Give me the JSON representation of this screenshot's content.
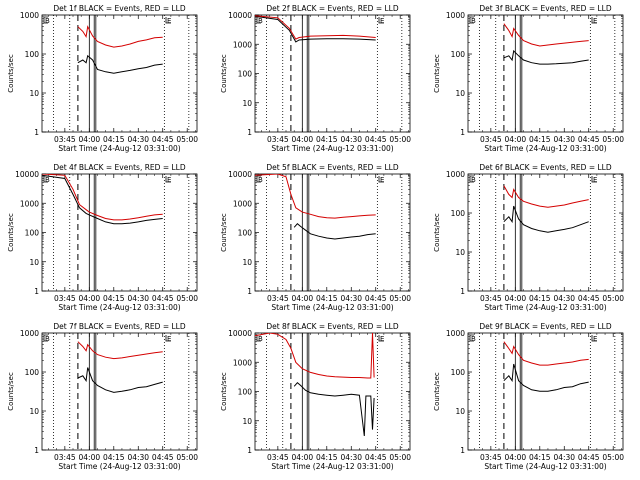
{
  "figure": {
    "xtick_labels": [
      "03:45",
      "04:00",
      "04:15",
      "04:30",
      "04:45",
      "05:00"
    ],
    "ylabel": "Counts/sec",
    "colors": {
      "events": "#000000",
      "lld": "#d40000"
    },
    "marker_labels": {
      "start": "B",
      "end": "E"
    }
  },
  "chart_data": [
    {
      "type": "line",
      "title": "Det 1f BLACK = Events, RED = LLD",
      "xlabel": "Start Time (24-Aug-12 03:31:00)",
      "ylabel": "Counts/sec",
      "xlim": [
        "03:31",
        "05:06"
      ],
      "ylim": [
        1,
        1000
      ],
      "yscale": "log",
      "ytick_labels": [
        "1",
        "10",
        "100",
        "1000"
      ],
      "series": [
        {
          "name": "Events",
          "x": [
            "03:53",
            "03:56",
            "03:58",
            "03:59",
            "04:02",
            "04:05",
            "04:10",
            "04:15",
            "04:20",
            "04:25",
            "04:30",
            "04:35",
            "04:40",
            "04:45"
          ],
          "y": [
            60,
            70,
            60,
            90,
            70,
            40,
            35,
            32,
            35,
            38,
            42,
            45,
            52,
            55
          ]
        },
        {
          "name": "LLD",
          "x": [
            "03:53",
            "03:56",
            "03:58",
            "03:59",
            "04:02",
            "04:05",
            "04:10",
            "04:15",
            "04:20",
            "04:25",
            "04:30",
            "04:35",
            "04:40",
            "04:45"
          ],
          "y": [
            500,
            380,
            280,
            500,
            290,
            210,
            170,
            150,
            160,
            180,
            210,
            230,
            260,
            270
          ]
        }
      ]
    },
    {
      "type": "line",
      "title": "Det 2f BLACK = Events, RED = LLD",
      "xlabel": "Start Time (24-Aug-12 03:31:00)",
      "ylabel": "Counts/sec",
      "xlim": [
        "03:31",
        "05:06"
      ],
      "ylim": [
        1,
        10000
      ],
      "yscale": "log",
      "ytick_labels": [
        "1",
        "10",
        "100",
        "1000",
        "10000"
      ],
      "series": [
        {
          "name": "Events",
          "x": [
            "03:31",
            "03:45",
            "03:52",
            "03:56",
            "03:58",
            "04:05",
            "04:15",
            "04:25",
            "04:35",
            "04:45"
          ],
          "y": [
            9000,
            7000,
            3000,
            1200,
            1400,
            1500,
            1550,
            1550,
            1500,
            1400
          ]
        },
        {
          "name": "LLD",
          "x": [
            "03:31",
            "03:45",
            "03:52",
            "03:56",
            "03:58",
            "04:05",
            "04:15",
            "04:25",
            "04:35",
            "04:45"
          ],
          "y": [
            9500,
            8000,
            3500,
            1500,
            1700,
            1900,
            1950,
            2000,
            1900,
            1700
          ]
        }
      ]
    },
    {
      "type": "line",
      "title": "Det 3f BLACK = Events, RED = LLD",
      "xlabel": "Start Time (24-Aug-12 03:31:00)",
      "ylabel": "Counts/sec",
      "xlim": [
        "03:31",
        "05:06"
      ],
      "ylim": [
        1,
        1000
      ],
      "yscale": "log",
      "ytick_labels": [
        "1",
        "10",
        "100",
        "1000"
      ],
      "series": [
        {
          "name": "Events",
          "x": [
            "03:53",
            "03:56",
            "03:58",
            "03:59",
            "04:02",
            "04:05",
            "04:10",
            "04:15",
            "04:20",
            "04:25",
            "04:30",
            "04:35",
            "04:40",
            "04:45"
          ],
          "y": [
            80,
            90,
            70,
            120,
            90,
            70,
            60,
            55,
            55,
            56,
            58,
            60,
            65,
            70
          ]
        },
        {
          "name": "LLD",
          "x": [
            "03:53",
            "03:56",
            "03:58",
            "03:59",
            "04:02",
            "04:05",
            "04:10",
            "04:15",
            "04:20",
            "04:25",
            "04:30",
            "04:35",
            "04:40",
            "04:45"
          ],
          "y": [
            600,
            400,
            280,
            450,
            300,
            220,
            180,
            160,
            170,
            180,
            190,
            200,
            210,
            220
          ]
        }
      ]
    },
    {
      "type": "line",
      "title": "Det 4f BLACK = Events, RED = LLD",
      "xlabel": "Start Time (24-Aug-12 03:31:00)",
      "ylabel": "Counts/sec",
      "xlim": [
        "03:31",
        "05:06"
      ],
      "ylim": [
        1,
        10000
      ],
      "yscale": "log",
      "ytick_labels": [
        "1",
        "10",
        "100",
        "1000",
        "10000"
      ],
      "series": [
        {
          "name": "Events",
          "x": [
            "03:31",
            "03:45",
            "03:50",
            "03:54",
            "03:58",
            "04:00",
            "04:05",
            "04:10",
            "04:15",
            "04:20",
            "04:25",
            "04:30",
            "04:35",
            "04:40",
            "04:45"
          ],
          "y": [
            9000,
            7000,
            2000,
            700,
            450,
            400,
            300,
            230,
            200,
            200,
            210,
            230,
            260,
            280,
            300
          ]
        },
        {
          "name": "LLD",
          "x": [
            "03:31",
            "03:45",
            "03:50",
            "03:54",
            "03:58",
            "04:00",
            "04:05",
            "04:10",
            "04:15",
            "04:20",
            "04:25",
            "04:30",
            "04:35",
            "04:40",
            "04:45"
          ],
          "y": [
            10000,
            9000,
            3000,
            900,
            600,
            500,
            380,
            300,
            270,
            270,
            290,
            320,
            360,
            400,
            420
          ]
        }
      ]
    },
    {
      "type": "line",
      "title": "Det 5f BLACK = Events, RED = LLD",
      "xlabel": "Start Time (24-Aug-12 03:31:00)",
      "ylabel": "Counts/sec",
      "xlim": [
        "03:31",
        "05:06"
      ],
      "ylim": [
        1,
        10000
      ],
      "yscale": "log",
      "ytick_labels": [
        "1",
        "10",
        "100",
        "1000",
        "10000"
      ],
      "series": [
        {
          "name": "Events",
          "x": [
            "03:55",
            "03:57",
            "03:59",
            "04:02",
            "04:05",
            "04:10",
            "04:15",
            "04:20",
            "04:25",
            "04:30",
            "04:35",
            "04:40",
            "04:45"
          ],
          "y": [
            150,
            200,
            160,
            120,
            90,
            75,
            65,
            60,
            65,
            70,
            75,
            85,
            90
          ]
        },
        {
          "name": "LLD",
          "x": [
            "03:31",
            "03:45",
            "03:50",
            "03:53",
            "03:56",
            "04:00",
            "04:05",
            "04:10",
            "04:15",
            "04:20",
            "04:25",
            "04:30",
            "04:35",
            "04:40",
            "04:45"
          ],
          "y": [
            9000,
            10000,
            8000,
            2000,
            700,
            500,
            420,
            350,
            320,
            310,
            330,
            350,
            370,
            390,
            400
          ]
        }
      ]
    },
    {
      "type": "line",
      "title": "Det 6f BLACK = Events, RED = LLD",
      "xlabel": "Start Time (24-Aug-12 03:31:00)",
      "ylabel": "Counts/sec",
      "xlim": [
        "03:31",
        "05:06"
      ],
      "ylim": [
        1,
        1000
      ],
      "yscale": "log",
      "ytick_labels": [
        "1",
        "10",
        "100",
        "1000"
      ],
      "series": [
        {
          "name": "Events",
          "x": [
            "03:53",
            "03:56",
            "03:58",
            "03:59",
            "04:02",
            "04:05",
            "04:10",
            "04:15",
            "04:20",
            "04:25",
            "04:30",
            "04:35",
            "04:40",
            "04:45"
          ],
          "y": [
            60,
            80,
            60,
            150,
            70,
            50,
            40,
            35,
            32,
            35,
            38,
            42,
            50,
            60
          ]
        },
        {
          "name": "LLD",
          "x": [
            "03:53",
            "03:56",
            "03:58",
            "03:59",
            "04:02",
            "04:05",
            "04:10",
            "04:15",
            "04:20",
            "04:25",
            "04:30",
            "04:35",
            "04:40",
            "04:45"
          ],
          "y": [
            500,
            300,
            250,
            400,
            250,
            200,
            170,
            150,
            140,
            150,
            160,
            180,
            200,
            220
          ]
        }
      ]
    },
    {
      "type": "line",
      "title": "Det 7f BLACK = Events, RED = LLD",
      "xlabel": "Start Time (24-Aug-12 03:31:00)",
      "ylabel": "Counts/sec",
      "xlim": [
        "03:31",
        "05:06"
      ],
      "ylim": [
        1,
        1000
      ],
      "yscale": "log",
      "ytick_labels": [
        "1",
        "10",
        "100",
        "1000"
      ],
      "series": [
        {
          "name": "Events",
          "x": [
            "03:53",
            "03:56",
            "03:58",
            "03:59",
            "04:02",
            "04:05",
            "04:10",
            "04:15",
            "04:20",
            "04:25",
            "04:30",
            "04:35",
            "04:40",
            "04:45"
          ],
          "y": [
            70,
            80,
            60,
            130,
            60,
            45,
            35,
            30,
            32,
            35,
            40,
            42,
            48,
            55
          ]
        },
        {
          "name": "LLD",
          "x": [
            "03:53",
            "03:56",
            "03:58",
            "03:59",
            "04:02",
            "04:05",
            "04:10",
            "04:15",
            "04:20",
            "04:25",
            "04:30",
            "04:35",
            "04:40",
            "04:45"
          ],
          "y": [
            600,
            450,
            350,
            500,
            350,
            280,
            240,
            220,
            230,
            250,
            270,
            290,
            310,
            330
          ]
        }
      ]
    },
    {
      "type": "line",
      "title": "Det 8f BLACK = Events, RED = LLD",
      "xlabel": "Start Time (24-Aug-12 03:31:00)",
      "ylabel": "Counts/sec",
      "xlim": [
        "03:31",
        "05:06"
      ],
      "ylim": [
        1,
        10000
      ],
      "yscale": "log",
      "ytick_labels": [
        "1",
        "10",
        "100",
        "1000",
        "10000"
      ],
      "series": [
        {
          "name": "Events",
          "x": [
            "03:55",
            "03:57",
            "03:59",
            "04:02",
            "04:05",
            "04:10",
            "04:15",
            "04:20",
            "04:25",
            "04:30",
            "04:35",
            "04:38",
            "04:39",
            "04:42",
            "04:43",
            "04:44"
          ],
          "y": [
            150,
            200,
            160,
            110,
            90,
            80,
            75,
            70,
            75,
            80,
            75,
            3,
            70,
            70,
            5,
            60
          ]
        },
        {
          "name": "LLD",
          "x": [
            "03:31",
            "03:40",
            "03:45",
            "03:50",
            "03:53",
            "03:56",
            "04:00",
            "04:05",
            "04:10",
            "04:15",
            "04:20",
            "04:25",
            "04:30",
            "04:35",
            "04:40",
            "04:42",
            "04:43",
            "04:44"
          ],
          "y": [
            8000,
            10000,
            9000,
            6000,
            3000,
            1000,
            600,
            450,
            380,
            340,
            320,
            310,
            300,
            300,
            290,
            290,
            10000,
            300
          ]
        }
      ]
    },
    {
      "type": "line",
      "title": "Det 9f BLACK = Events, RED = LLD",
      "xlabel": "Start Time (24-Aug-12 03:31:00)",
      "ylabel": "Counts/sec",
      "xlim": [
        "03:31",
        "05:06"
      ],
      "ylim": [
        1,
        1000
      ],
      "yscale": "log",
      "ytick_labels": [
        "1",
        "10",
        "100",
        "1000"
      ],
      "series": [
        {
          "name": "Events",
          "x": [
            "03:53",
            "03:56",
            "03:58",
            "03:59",
            "04:02",
            "04:05",
            "04:10",
            "04:15",
            "04:20",
            "04:25",
            "04:30",
            "04:35",
            "04:40",
            "04:45"
          ],
          "y": [
            60,
            80,
            60,
            160,
            60,
            45,
            35,
            32,
            32,
            35,
            40,
            42,
            50,
            55
          ]
        },
        {
          "name": "LLD",
          "x": [
            "03:53",
            "03:56",
            "03:58",
            "03:59",
            "04:02",
            "04:05",
            "04:10",
            "04:15",
            "04:20",
            "04:25",
            "04:30",
            "04:35",
            "04:40",
            "04:45"
          ],
          "y": [
            600,
            400,
            300,
            450,
            280,
            200,
            170,
            150,
            150,
            160,
            170,
            180,
            200,
            210
          ]
        }
      ]
    }
  ]
}
